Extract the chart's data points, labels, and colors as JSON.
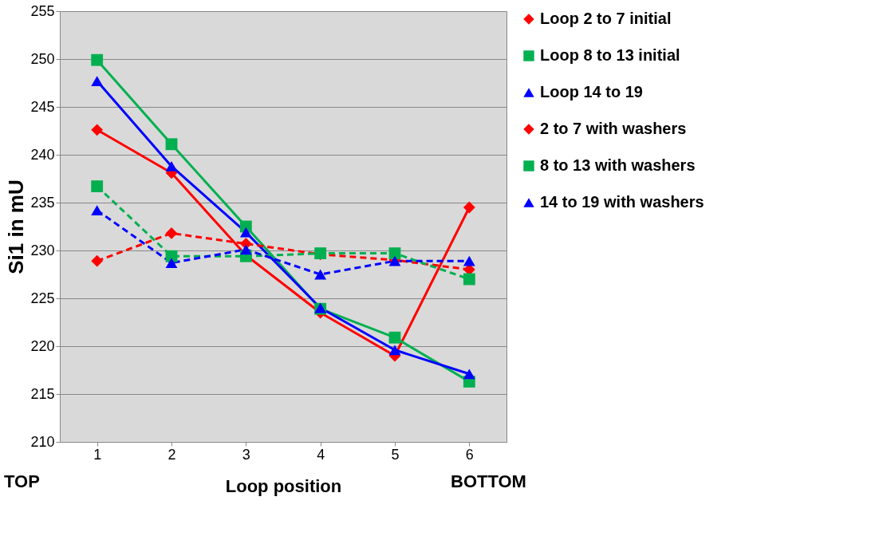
{
  "chart_data": {
    "type": "line",
    "xlabel": "Loop position",
    "ylabel": "Si1 in mU",
    "categories": [
      "1",
      "2",
      "3",
      "4",
      "5",
      "6"
    ],
    "series": [
      {
        "name": "Loop 2 to 7 initial",
        "color": "#ff0000",
        "marker": "diamond",
        "line_style": "solid",
        "values": [
          242.6,
          238.1,
          229.5,
          223.5,
          219.0,
          234.5
        ]
      },
      {
        "name": "Loop 8 to 13 initial",
        "color": "#00b050",
        "marker": "square",
        "line_style": "solid",
        "values": [
          249.9,
          241.1,
          232.5,
          223.9,
          220.9,
          216.3
        ]
      },
      {
        "name": "Loop 14 to 19",
        "color": "#0000ff",
        "marker": "triangle",
        "line_style": "solid",
        "values": [
          247.7,
          238.8,
          231.9,
          224.0,
          219.6,
          217.1
        ]
      },
      {
        "name": "2 to 7 with washers",
        "color": "#ff0000",
        "marker": "diamond",
        "line_style": "dashed",
        "values": [
          228.9,
          231.8,
          230.7,
          229.6,
          229.0,
          228.0
        ]
      },
      {
        "name": "8 to 13 with washers",
        "color": "#00b050",
        "marker": "square",
        "line_style": "dashed",
        "values": [
          236.7,
          229.4,
          229.4,
          229.7,
          229.7,
          227.0
        ]
      },
      {
        "name": "14 to 19 with washers",
        "color": "#0000ff",
        "marker": "triangle",
        "line_style": "dashed",
        "values": [
          234.2,
          228.7,
          230.1,
          227.5,
          228.9,
          228.9
        ]
      }
    ],
    "ylim": [
      210,
      255
    ],
    "yticks": [
      210,
      215,
      220,
      225,
      230,
      235,
      240,
      245,
      250,
      255
    ],
    "grid": "y",
    "legend": "right",
    "annotations": [
      "TOP",
      "BOTTOM"
    ]
  }
}
